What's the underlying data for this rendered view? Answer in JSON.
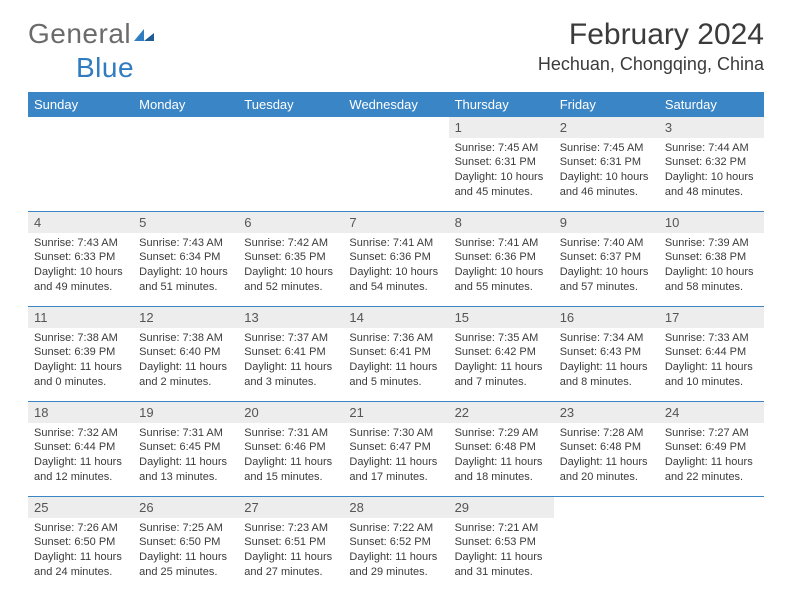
{
  "logo": {
    "text1": "General",
    "text2": "Blue"
  },
  "title": {
    "month": "February 2024",
    "location": "Hechuan, Chongqing, China"
  },
  "colors": {
    "header_bg": "#3a85c6",
    "header_fg": "#ffffff",
    "daynum_bg": "#ededed",
    "text": "#3b3b3b",
    "logo_gray": "#6b6b6b",
    "logo_blue": "#2f7cc0"
  },
  "dow": [
    "Sunday",
    "Monday",
    "Tuesday",
    "Wednesday",
    "Thursday",
    "Friday",
    "Saturday"
  ],
  "weeks": [
    [
      null,
      null,
      null,
      null,
      {
        "n": "1",
        "sr": "7:45 AM",
        "ss": "6:31 PM",
        "dl": "10 hours and 45 minutes."
      },
      {
        "n": "2",
        "sr": "7:45 AM",
        "ss": "6:31 PM",
        "dl": "10 hours and 46 minutes."
      },
      {
        "n": "3",
        "sr": "7:44 AM",
        "ss": "6:32 PM",
        "dl": "10 hours and 48 minutes."
      }
    ],
    [
      {
        "n": "4",
        "sr": "7:43 AM",
        "ss": "6:33 PM",
        "dl": "10 hours and 49 minutes."
      },
      {
        "n": "5",
        "sr": "7:43 AM",
        "ss": "6:34 PM",
        "dl": "10 hours and 51 minutes."
      },
      {
        "n": "6",
        "sr": "7:42 AM",
        "ss": "6:35 PM",
        "dl": "10 hours and 52 minutes."
      },
      {
        "n": "7",
        "sr": "7:41 AM",
        "ss": "6:36 PM",
        "dl": "10 hours and 54 minutes."
      },
      {
        "n": "8",
        "sr": "7:41 AM",
        "ss": "6:36 PM",
        "dl": "10 hours and 55 minutes."
      },
      {
        "n": "9",
        "sr": "7:40 AM",
        "ss": "6:37 PM",
        "dl": "10 hours and 57 minutes."
      },
      {
        "n": "10",
        "sr": "7:39 AM",
        "ss": "6:38 PM",
        "dl": "10 hours and 58 minutes."
      }
    ],
    [
      {
        "n": "11",
        "sr": "7:38 AM",
        "ss": "6:39 PM",
        "dl": "11 hours and 0 minutes."
      },
      {
        "n": "12",
        "sr": "7:38 AM",
        "ss": "6:40 PM",
        "dl": "11 hours and 2 minutes."
      },
      {
        "n": "13",
        "sr": "7:37 AM",
        "ss": "6:41 PM",
        "dl": "11 hours and 3 minutes."
      },
      {
        "n": "14",
        "sr": "7:36 AM",
        "ss": "6:41 PM",
        "dl": "11 hours and 5 minutes."
      },
      {
        "n": "15",
        "sr": "7:35 AM",
        "ss": "6:42 PM",
        "dl": "11 hours and 7 minutes."
      },
      {
        "n": "16",
        "sr": "7:34 AM",
        "ss": "6:43 PM",
        "dl": "11 hours and 8 minutes."
      },
      {
        "n": "17",
        "sr": "7:33 AM",
        "ss": "6:44 PM",
        "dl": "11 hours and 10 minutes."
      }
    ],
    [
      {
        "n": "18",
        "sr": "7:32 AM",
        "ss": "6:44 PM",
        "dl": "11 hours and 12 minutes."
      },
      {
        "n": "19",
        "sr": "7:31 AM",
        "ss": "6:45 PM",
        "dl": "11 hours and 13 minutes."
      },
      {
        "n": "20",
        "sr": "7:31 AM",
        "ss": "6:46 PM",
        "dl": "11 hours and 15 minutes."
      },
      {
        "n": "21",
        "sr": "7:30 AM",
        "ss": "6:47 PM",
        "dl": "11 hours and 17 minutes."
      },
      {
        "n": "22",
        "sr": "7:29 AM",
        "ss": "6:48 PM",
        "dl": "11 hours and 18 minutes."
      },
      {
        "n": "23",
        "sr": "7:28 AM",
        "ss": "6:48 PM",
        "dl": "11 hours and 20 minutes."
      },
      {
        "n": "24",
        "sr": "7:27 AM",
        "ss": "6:49 PM",
        "dl": "11 hours and 22 minutes."
      }
    ],
    [
      {
        "n": "25",
        "sr": "7:26 AM",
        "ss": "6:50 PM",
        "dl": "11 hours and 24 minutes."
      },
      {
        "n": "26",
        "sr": "7:25 AM",
        "ss": "6:50 PM",
        "dl": "11 hours and 25 minutes."
      },
      {
        "n": "27",
        "sr": "7:23 AM",
        "ss": "6:51 PM",
        "dl": "11 hours and 27 minutes."
      },
      {
        "n": "28",
        "sr": "7:22 AM",
        "ss": "6:52 PM",
        "dl": "11 hours and 29 minutes."
      },
      {
        "n": "29",
        "sr": "7:21 AM",
        "ss": "6:53 PM",
        "dl": "11 hours and 31 minutes."
      },
      null,
      null
    ]
  ],
  "labels": {
    "sunrise": "Sunrise:",
    "sunset": "Sunset:",
    "daylight": "Daylight:"
  }
}
